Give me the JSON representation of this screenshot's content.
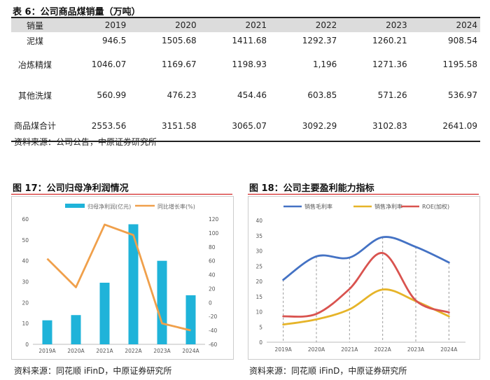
{
  "table": {
    "caption": "表 6：公司商品煤销量（万吨）",
    "headers": [
      "销量",
      "2019",
      "2020",
      "2021",
      "2022",
      "2023",
      "2024"
    ],
    "rows": [
      {
        "name": "泥煤",
        "values": [
          "946.5",
          "1505.68",
          "1411.68",
          "1292.37",
          "1260.21",
          "908.54"
        ]
      },
      {
        "name": "冶炼精煤",
        "values": [
          "1046.07",
          "1169.67",
          "1198.93",
          "1,196",
          "1271.36",
          "1195.58"
        ]
      },
      {
        "name": "其他洗煤",
        "values": [
          "560.99",
          "476.23",
          "454.46",
          "603.85",
          "571.26",
          "536.97"
        ]
      },
      {
        "name": "商品煤合计",
        "values": [
          "2553.56",
          "3151.58",
          "3065.07",
          "3092.29",
          "3102.83",
          "2641.09"
        ]
      }
    ],
    "source": "资料来源：公司公告，中原证券研究所"
  },
  "fig17": {
    "caption": "图 17：公司归母净利润情况",
    "source": "资料来源：同花顺 iFinD，中原证券研究所",
    "bar_color": "#1fb3d9",
    "line_color": "#f0a04b"
  },
  "fig18": {
    "caption": "图 18：公司主要盈利能力指标",
    "source": "资料来源：同花顺 iFinD，中原证券研究所"
  },
  "chart_data": [
    {
      "type": "bar",
      "categories": [
        "2019A",
        "2020A",
        "2021A",
        "2022A",
        "2023A",
        "2024A"
      ],
      "series": [
        {
          "name": "归母净利润(亿元)",
          "values": [
            11.5,
            14,
            29.5,
            57.5,
            40,
            23.5
          ],
          "axis": "left",
          "color": "#1fb3d9"
        },
        {
          "name": "同比增长率(%)",
          "values": [
            63,
            22,
            112,
            97,
            -30,
            -40
          ],
          "axis": "right",
          "type": "line",
          "color": "#f0a04b"
        }
      ],
      "ylim": [
        0,
        60
      ],
      "yticks": [
        0,
        10,
        20,
        30,
        40,
        50,
        60
      ],
      "y2lim": [
        -60,
        120
      ],
      "y2ticks": [
        -60,
        -40,
        -20,
        0,
        20,
        40,
        60,
        80,
        100,
        120
      ],
      "legend": "top"
    },
    {
      "type": "line",
      "categories": [
        "2019A",
        "2020A",
        "2021A",
        "2022A",
        "2023A",
        "2024A"
      ],
      "series": [
        {
          "name": "销售毛利率",
          "values": [
            20.5,
            28.2,
            27.8,
            34.5,
            31.3,
            26.2
          ],
          "color": "#4472c4"
        },
        {
          "name": "销售净利率",
          "values": [
            5.8,
            7.5,
            10.8,
            17.3,
            13.5,
            8.5
          ],
          "color": "#e6b429"
        },
        {
          "name": "ROE(加权)",
          "values": [
            8.5,
            9.3,
            17.5,
            29.3,
            13.7,
            9.8
          ],
          "color": "#d9534f"
        }
      ],
      "ylim": [
        0,
        40
      ],
      "yticks": [
        0,
        5,
        10,
        15,
        20,
        25,
        30,
        35,
        40
      ],
      "legend": "top"
    }
  ]
}
